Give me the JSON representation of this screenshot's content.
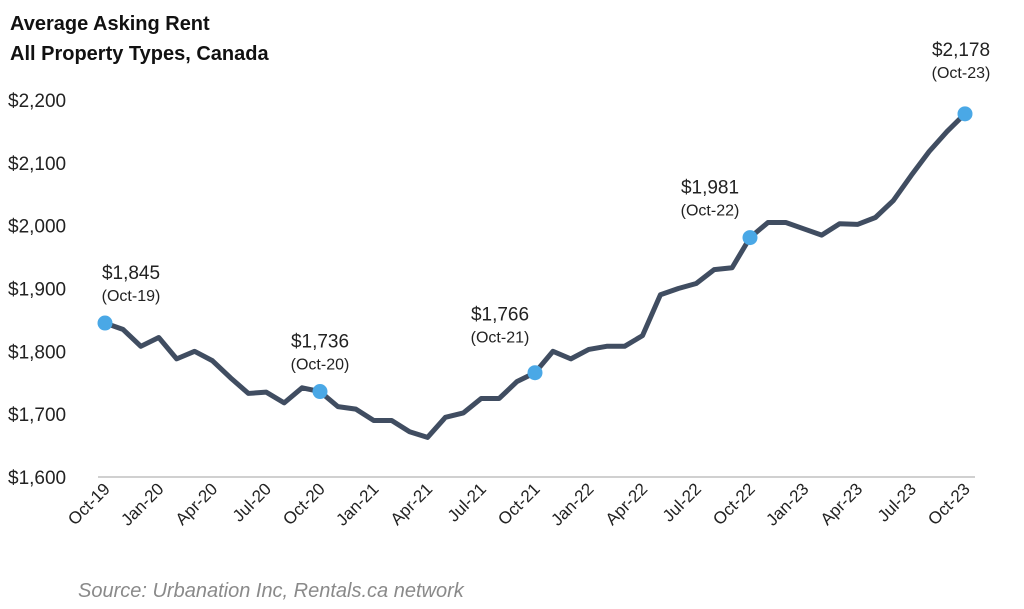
{
  "chart_data": {
    "type": "line",
    "title": [
      "Average Asking Rent",
      "All Property Types, Canada"
    ],
    "source": "Source: Urbanation Inc, Rentals.ca network",
    "xlabel": "",
    "ylabel": "",
    "ylim": [
      1600,
      2200
    ],
    "yticks": [
      1600,
      1700,
      1800,
      1900,
      2000,
      2100,
      2200
    ],
    "ytick_labels": [
      "$1,600",
      "$1,700",
      "$1,800",
      "$1,900",
      "$2,000",
      "$2,100",
      "$2,200"
    ],
    "xtick_labels": [
      "Oct-19",
      "Jan-20",
      "Apr-20",
      "Jul-20",
      "Oct-20",
      "Jan-21",
      "Apr-21",
      "Jul-21",
      "Oct-21",
      "Jan-22",
      "Apr-22",
      "Jul-22",
      "Oct-22",
      "Jan-23",
      "Apr-23",
      "Jul-23",
      "Oct-23"
    ],
    "grid": false,
    "line_color": "#404d61",
    "marker_color": "#4aa8e6",
    "series": [
      {
        "name": "Average Asking Rent",
        "values": [
          1845,
          1835,
          1808,
          1822,
          1788,
          1800,
          1785,
          1758,
          1733,
          1735,
          1718,
          1742,
          1736,
          1712,
          1708,
          1690,
          1690,
          1672,
          1663,
          1695,
          1702,
          1725,
          1725,
          1752,
          1766,
          1800,
          1788,
          1803,
          1808,
          1808,
          1825,
          1890,
          1900,
          1908,
          1930,
          1933,
          1981,
          2005,
          2005,
          1995,
          1985,
          2003,
          2002,
          2013,
          2040,
          2080,
          2118,
          2150,
          2178
        ]
      }
    ],
    "annotations": [
      {
        "index": 0,
        "value": "$1,845",
        "date": "(Oct-19)"
      },
      {
        "index": 12,
        "value": "$1,736",
        "date": "(Oct-20)"
      },
      {
        "index": 24,
        "value": "$1,766",
        "date": "(Oct-21)"
      },
      {
        "index": 36,
        "value": "$1,981",
        "date": "(Oct-22)"
      },
      {
        "index": 48,
        "value": "$2,178",
        "date": "(Oct-23)"
      }
    ]
  }
}
